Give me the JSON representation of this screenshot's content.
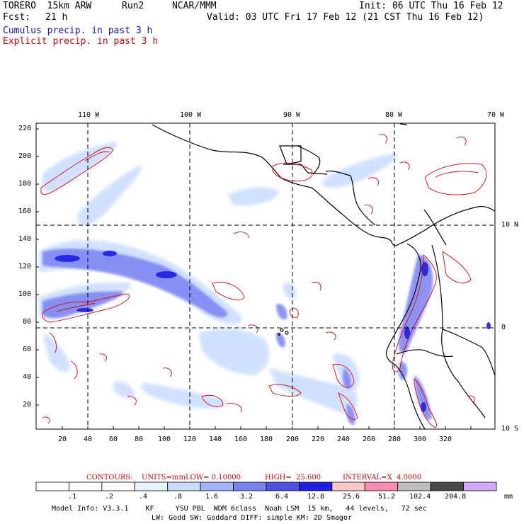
{
  "header": {
    "model": "TORERO  15km ARW",
    "run": "Run2",
    "org": "NCAR/MMM",
    "init": "Init: 06 UTC Thu 16 Feb 12",
    "fcst_label": "Fcst:",
    "fcst_value": "21 h",
    "valid": "Valid: 03 UTC Fri 17 Feb 12 (21 CST Thu 16 Feb 12)",
    "field1": "Cumulus precip. in past 3 h",
    "field2": "Explicit precip. in past 3 h",
    "field1_color": "#1414c8",
    "field2_color": "#dc0000"
  },
  "map": {
    "lon_labels": [
      "110 W",
      "100 W",
      "90 W",
      "80 W",
      "70 W"
    ],
    "lat_labels": [
      "10 N",
      "0",
      "10 S"
    ],
    "y_ticks": [
      "220",
      "200",
      "180",
      "160",
      "140",
      "120",
      "100",
      "80",
      "60",
      "40",
      "20"
    ],
    "x_ticks": [
      "20",
      "40",
      "60",
      "80",
      "100",
      "120",
      "140",
      "160",
      "180",
      "200",
      "220",
      "240",
      "260",
      "280",
      "300",
      "320"
    ]
  },
  "legend": {
    "contours_label": "CONTOURS:",
    "units": "UNITS=mm",
    "low": "LOW= 0.10000",
    "high": "HIGH=  25.600",
    "interval": "INTERVAL=X  4.0000",
    "thresholds": [
      ".1",
      ".2",
      ".4",
      ".8",
      "1.6",
      "3.2",
      "6.4",
      "12.8",
      "25.6",
      "51.2",
      "102.4",
      "204.8"
    ],
    "unit_label": "mm",
    "colors": [
      "#ffffff",
      "#ffffff",
      "#ffffff",
      "#e6f5ff",
      "#c8dcff",
      "#a0b4ff",
      "#7882f0",
      "#5050e6",
      "#1e1ee6",
      "#ffc8c8",
      "#ff8cb4",
      "#bebebe",
      "#4b4b4b",
      "#d2aaff"
    ]
  },
  "footer": {
    "line1": "Model Info: V3.3.1    KF     YSU PBL  WDM 6class  Noah LSM  15 km,   44 levels,   72 sec",
    "line2": "LW: Godd SW: Goddard DIFF: simple KM: 2D Smagor"
  }
}
